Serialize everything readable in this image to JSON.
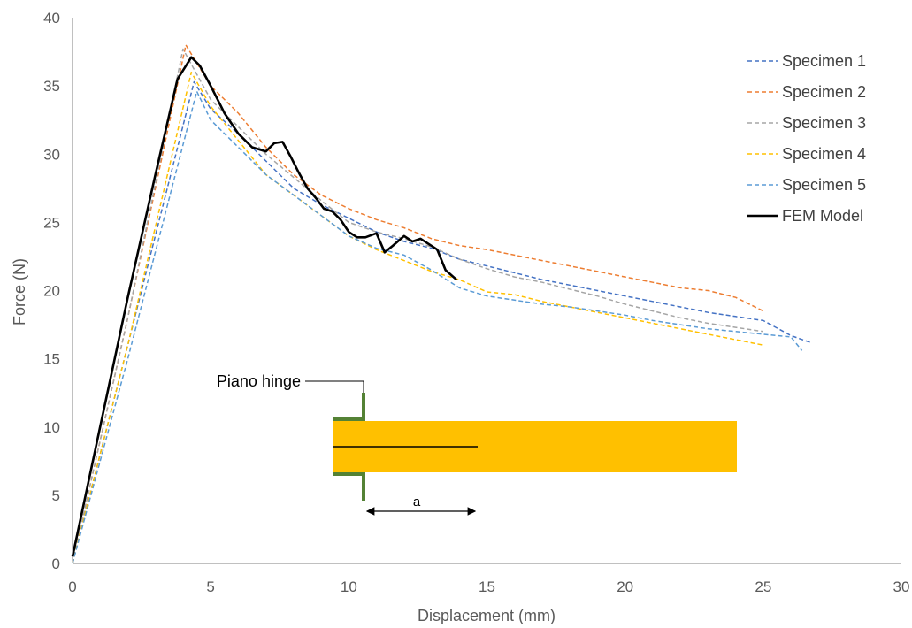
{
  "chart_data": {
    "type": "line",
    "title": "",
    "xlabel": "Displacement (mm)",
    "ylabel": "Force (N)",
    "xlim": [
      0,
      30
    ],
    "ylim": [
      0,
      40
    ],
    "xticks": [
      0,
      5,
      10,
      15,
      20,
      25,
      30
    ],
    "yticks": [
      0,
      5,
      10,
      15,
      20,
      25,
      30,
      35,
      40
    ],
    "grid": false,
    "legend_position": "top-right",
    "series": [
      {
        "name": "Specimen 1",
        "color": "#4472C4",
        "style": "dashed",
        "x": [
          0,
          2,
          4.4,
          5,
          6,
          7,
          8,
          9,
          10,
          11,
          12,
          13,
          14,
          15,
          16,
          17,
          18,
          19,
          20,
          21,
          22,
          23,
          24,
          25,
          26,
          26.7
        ],
        "y": [
          0,
          16,
          35.3,
          33.3,
          31.5,
          29.5,
          27.5,
          26.3,
          25.3,
          24.3,
          23.6,
          23.1,
          22.3,
          21.8,
          21.3,
          20.8,
          20.4,
          20.0,
          19.6,
          19.2,
          18.8,
          18.4,
          18.1,
          17.8,
          16.7,
          16.2
        ]
      },
      {
        "name": "Specimen 2",
        "color": "#ED7D31",
        "style": "dashed",
        "x": [
          0,
          2,
          4.1,
          5,
          6,
          7,
          8,
          9,
          10,
          11,
          12,
          13,
          14,
          15,
          16,
          17,
          18,
          19,
          20,
          21,
          22,
          23,
          24,
          25
        ],
        "y": [
          0,
          18,
          38.0,
          35.0,
          33.0,
          30.5,
          28.5,
          27.0,
          26.0,
          25.2,
          24.6,
          23.8,
          23.3,
          23.0,
          22.6,
          22.2,
          21.8,
          21.4,
          21.0,
          20.6,
          20.2,
          20.0,
          19.5,
          18.5
        ]
      },
      {
        "name": "Specimen 3",
        "color": "#A5A5A5",
        "style": "dashed",
        "x": [
          0,
          2,
          4.0,
          5,
          6,
          7,
          8,
          9,
          10,
          11,
          12,
          13,
          14,
          15,
          16,
          17,
          18,
          19,
          20,
          21,
          22,
          23,
          24,
          25
        ],
        "y": [
          0,
          18,
          37.7,
          34.0,
          32.0,
          30.0,
          28.3,
          26.6,
          25.0,
          24.3,
          23.8,
          23.2,
          22.3,
          21.6,
          21.0,
          20.6,
          20.1,
          19.6,
          19.0,
          18.5,
          18.0,
          17.6,
          17.3,
          17.0
        ]
      },
      {
        "name": "Specimen 4",
        "color": "#FFC000",
        "style": "dashed",
        "x": [
          0,
          2,
          4.3,
          5,
          6,
          7,
          8,
          9,
          10,
          11,
          12,
          13,
          14,
          15,
          16,
          17,
          18,
          19,
          20,
          21,
          22,
          23,
          24,
          25
        ],
        "y": [
          0,
          16,
          36.0,
          33.5,
          31.0,
          28.5,
          27.0,
          25.5,
          24.0,
          23.0,
          22.2,
          21.4,
          20.8,
          19.9,
          19.7,
          19.2,
          18.8,
          18.4,
          18.0,
          17.6,
          17.2,
          16.8,
          16.4,
          16.0
        ]
      },
      {
        "name": "Specimen 5",
        "color": "#5B9BD5",
        "style": "dashed",
        "x": [
          0,
          2,
          4.5,
          5,
          6,
          7,
          8,
          9,
          10,
          11,
          12,
          13,
          14,
          15,
          16,
          17,
          18,
          19,
          20,
          21,
          22,
          23,
          24,
          25,
          26,
          26.4
        ],
        "y": [
          0,
          15,
          34.6,
          32.5,
          30.5,
          28.5,
          27.0,
          25.5,
          24.0,
          23.1,
          22.6,
          21.5,
          20.2,
          19.6,
          19.3,
          19.0,
          18.8,
          18.5,
          18.2,
          17.8,
          17.5,
          17.2,
          17.0,
          16.8,
          16.6,
          15.6
        ]
      },
      {
        "name": "FEM Model",
        "color": "#000000",
        "style": "solid",
        "x": [
          0,
          1,
          2,
          3,
          3.8,
          4.3,
          4.6,
          5.0,
          5.5,
          6.0,
          6.5,
          7.0,
          7.3,
          7.6,
          7.9,
          8.2,
          8.5,
          8.8,
          9.1,
          9.4,
          9.7,
          10.0,
          10.3,
          10.6,
          11.0,
          11.3,
          11.6,
          12.0,
          12.3,
          12.6,
          12.9,
          13.2,
          13.5,
          13.9
        ],
        "y": [
          0.5,
          10,
          19.5,
          28.5,
          35.5,
          37.1,
          36.5,
          35.0,
          33.0,
          31.5,
          30.5,
          30.2,
          30.8,
          30.9,
          29.8,
          28.6,
          27.5,
          26.8,
          26.0,
          25.8,
          25.2,
          24.3,
          23.9,
          23.9,
          24.2,
          22.8,
          23.3,
          24.0,
          23.6,
          23.8,
          23.4,
          23.0,
          21.5,
          20.8
        ]
      }
    ],
    "inset": {
      "label": "Piano hinge",
      "dimension_label": "a",
      "beam_color": "#FFC000",
      "hinge_color": "#548235"
    }
  }
}
